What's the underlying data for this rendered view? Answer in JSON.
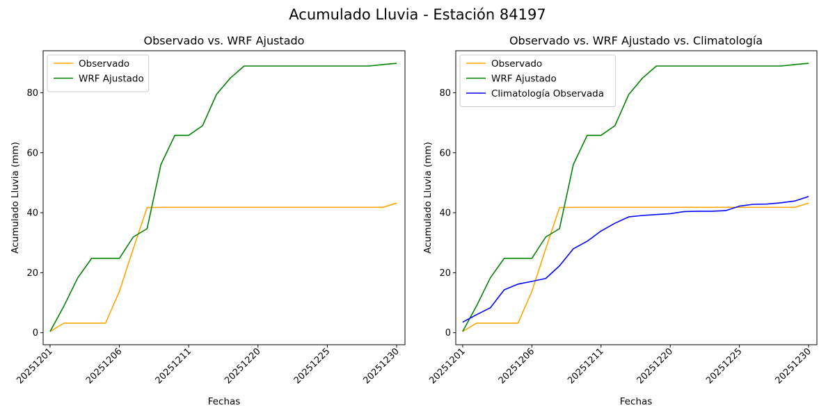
{
  "figure": {
    "title": "Acumulado Lluvia - Estación 84197"
  },
  "chart_data": [
    {
      "type": "line",
      "title": "Observado vs. WRF Ajustado",
      "xlabel": "Fechas",
      "ylabel": "Acumulado Lluvia (mm)",
      "xticks": [
        "20251201",
        "20251206",
        "20251211",
        "20251220",
        "20251225",
        "20251230"
      ],
      "yticks": [
        0,
        20,
        40,
        60,
        80
      ],
      "ylim": [
        -4,
        94
      ],
      "xlim": [
        -0.5,
        25.6
      ],
      "legend_position": "upper-left",
      "series": [
        {
          "name": "Observado",
          "color": "#ffa500",
          "x": [
            0,
            1,
            2,
            3,
            4,
            5,
            6,
            7,
            8,
            9,
            10,
            11,
            12,
            13,
            14,
            15,
            16,
            17,
            18,
            19,
            20,
            21,
            22,
            23,
            24,
            25
          ],
          "values": [
            0.4,
            3.2,
            3.2,
            3.2,
            3.2,
            13.8,
            28.0,
            41.7,
            41.8,
            41.8,
            41.8,
            41.8,
            41.8,
            41.8,
            41.8,
            41.8,
            41.8,
            41.8,
            41.8,
            41.8,
            41.8,
            41.8,
            41.8,
            41.8,
            41.8,
            43.2
          ]
        },
        {
          "name": "WRF Ajustado",
          "color": "#008000",
          "x": [
            0,
            1,
            2,
            3,
            4,
            5,
            6,
            7,
            8,
            9,
            10,
            11,
            12,
            13,
            14,
            15,
            16,
            17,
            18,
            19,
            20,
            21,
            22,
            23,
            24,
            25
          ],
          "values": [
            0.4,
            8.9,
            18.3,
            24.8,
            24.8,
            24.8,
            31.9,
            34.7,
            56.1,
            65.8,
            65.8,
            69.0,
            79.4,
            84.9,
            88.9,
            88.9,
            88.9,
            88.9,
            88.9,
            88.9,
            88.9,
            88.9,
            88.9,
            88.9,
            89.4,
            89.8
          ]
        }
      ]
    },
    {
      "type": "line",
      "title": "Observado vs. WRF Ajustado vs. Climatología",
      "xlabel": "Fechas",
      "ylabel": "Acumulado Lluvia (mm)",
      "xticks": [
        "20251201",
        "20251206",
        "20251211",
        "20251220",
        "20251225",
        "20251230"
      ],
      "yticks": [
        0,
        20,
        40,
        60,
        80
      ],
      "ylim": [
        -4,
        94
      ],
      "xlim": [
        -0.5,
        25.6
      ],
      "legend_position": "upper-left",
      "series": [
        {
          "name": "Observado",
          "color": "#ffa500",
          "x": [
            0,
            1,
            2,
            3,
            4,
            5,
            6,
            7,
            8,
            9,
            10,
            11,
            12,
            13,
            14,
            15,
            16,
            17,
            18,
            19,
            20,
            21,
            22,
            23,
            24,
            25
          ],
          "values": [
            0.4,
            3.2,
            3.2,
            3.2,
            3.2,
            13.8,
            28.0,
            41.7,
            41.8,
            41.8,
            41.8,
            41.8,
            41.8,
            41.8,
            41.8,
            41.8,
            41.8,
            41.8,
            41.8,
            41.8,
            41.8,
            41.8,
            41.8,
            41.8,
            41.8,
            43.2
          ]
        },
        {
          "name": "WRF Ajustado",
          "color": "#008000",
          "x": [
            0,
            1,
            2,
            3,
            4,
            5,
            6,
            7,
            8,
            9,
            10,
            11,
            12,
            13,
            14,
            15,
            16,
            17,
            18,
            19,
            20,
            21,
            22,
            23,
            24,
            25
          ],
          "values": [
            0.4,
            8.9,
            18.3,
            24.8,
            24.8,
            24.8,
            31.9,
            34.7,
            56.1,
            65.8,
            65.8,
            69.0,
            79.4,
            84.9,
            88.9,
            88.9,
            88.9,
            88.9,
            88.9,
            88.9,
            88.9,
            88.9,
            88.9,
            88.9,
            89.4,
            89.8
          ]
        },
        {
          "name": "Climatología Observada",
          "color": "#0000ff",
          "x": [
            0,
            1,
            2,
            3,
            4,
            5,
            6,
            7,
            8,
            9,
            10,
            11,
            12,
            13,
            14,
            15,
            16,
            17,
            18,
            19,
            20,
            21,
            22,
            23,
            24,
            25
          ],
          "values": [
            3.5,
            6.0,
            8.3,
            14.3,
            16.2,
            17.1,
            18.1,
            22.3,
            28.0,
            30.5,
            33.9,
            36.5,
            38.6,
            39.1,
            39.4,
            39.7,
            40.4,
            40.5,
            40.5,
            40.7,
            42.2,
            42.8,
            42.9,
            43.3,
            43.9,
            45.4
          ]
        }
      ]
    }
  ]
}
